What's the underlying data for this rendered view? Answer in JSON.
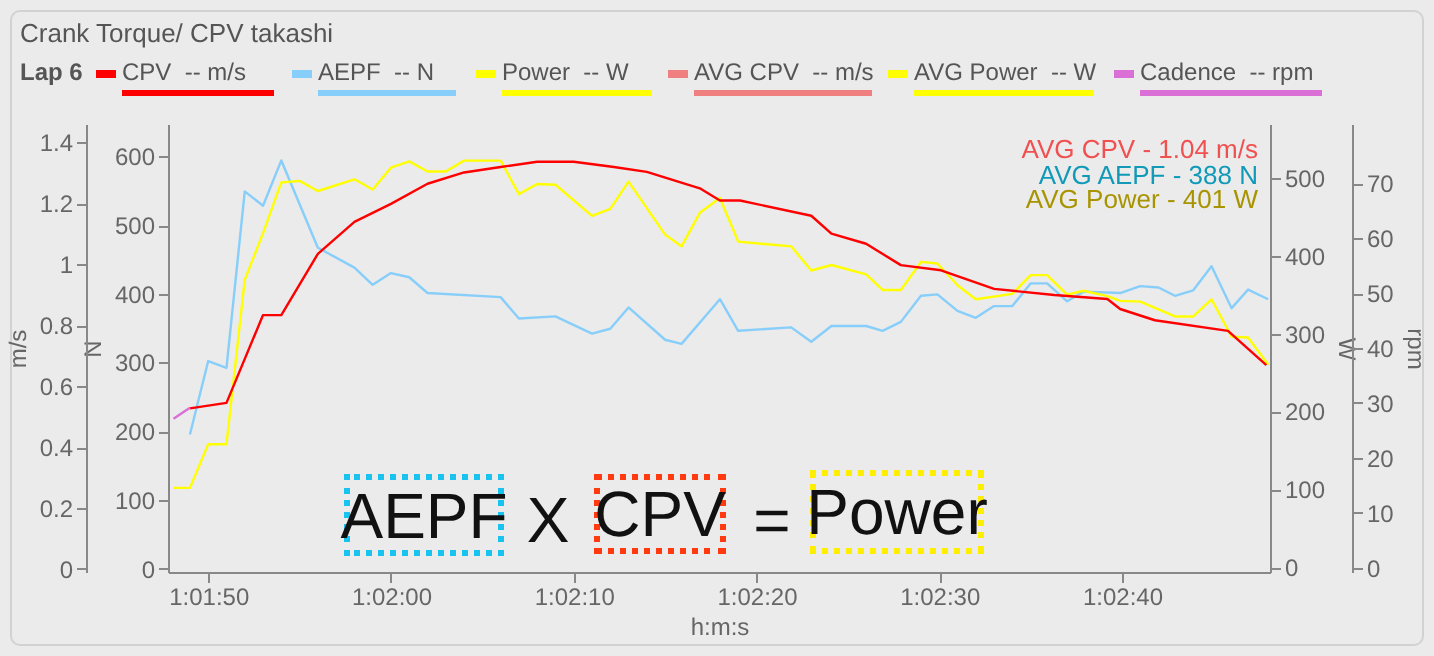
{
  "chart_data": [
    {
      "type": "line",
      "title": "Crank Torque/ CPV takashi",
      "xlabel": "h:m:s",
      "ylabel": "N",
      "y2label": "W",
      "y3label": "m/s",
      "xlim": [
        3707.8,
        3768.1
      ],
      "xticks": [
        {
          "value": 3710,
          "label": "1:01:50"
        },
        {
          "value": 3720,
          "label": "1:02:00"
        },
        {
          "value": 3730,
          "label": "1:02:10"
        },
        {
          "value": 3740,
          "label": "1:02:20"
        },
        {
          "value": 3750,
          "label": "1:02:30"
        },
        {
          "value": 3760,
          "label": "1:02:40"
        }
      ],
      "ylim": [
        -5,
        647
      ],
      "yticks": [
        0,
        100,
        200,
        300,
        400,
        500,
        600
      ],
      "y2lim": [
        -6,
        569
      ],
      "y2ticks": [
        0,
        100,
        200,
        300,
        400,
        500
      ],
      "y3lim": [
        -0.01,
        1.46
      ],
      "y3ticks": [
        0,
        0.2,
        0.4,
        0.6,
        0.8,
        1,
        1.2,
        1.4
      ],
      "legend": "top",
      "annotations": [
        "Lap 6",
        "AVG CPV - 1.04 m/s",
        "AVG AEPF - 388 N",
        "AVG Power - 401 W",
        "AEPF",
        "X",
        "CPV",
        "=",
        "Power"
      ],
      "series": [
        {
          "name": "CPV  -- m/s",
          "color": "#ff0000",
          "axis": "y3",
          "x": [
            3709.0,
            3711.0,
            3713.0,
            3714.0,
            3716.0,
            3718.0,
            3720.0,
            3722.0,
            3724.0,
            3726.0,
            3728.0,
            3730.0,
            3732.2,
            3734.0,
            3736.9,
            3738.0,
            3739.1,
            3743.0,
            3744.1,
            3746.0,
            3747.9,
            3750.1,
            3753.0,
            3756.3,
            3759.2,
            3759.9,
            3761.8,
            3765.8,
            3767.9
          ],
          "values": [
            0.527,
            0.545,
            0.833,
            0.833,
            1.034,
            1.139,
            1.198,
            1.264,
            1.301,
            1.319,
            1.336,
            1.336,
            1.319,
            1.303,
            1.249,
            1.209,
            1.209,
            1.159,
            1.1,
            1.067,
            0.997,
            0.98,
            0.919,
            0.899,
            0.886,
            0.853,
            0.816,
            0.781,
            0.669
          ]
        },
        {
          "name": "AEPF  -- N",
          "color": "#87cefa",
          "x": [
            3709.0,
            3710.0,
            3711.0,
            3712.0,
            3713.0,
            3714.0,
            3716.0,
            3718.0,
            3719.0,
            3720.0,
            3721.0,
            3722.0,
            3726.0,
            3727.0,
            3729.0,
            3731.0,
            3732.0,
            3733.0,
            3735.0,
            3735.9,
            3738.0,
            3739.0,
            3741.9,
            3743.0,
            3744.1,
            3746.0,
            3746.9,
            3747.9,
            3749.0,
            3749.9,
            3751.0,
            3752.0,
            3753.0,
            3754.0,
            3755.0,
            3755.9,
            3757.0,
            3757.9,
            3759.9,
            3761.0,
            3762.0,
            3762.9,
            3763.9,
            3764.9,
            3766.0,
            3766.9,
            3768.0
          ],
          "values": [
            195,
            302,
            292,
            549,
            528,
            594,
            467,
            438,
            413,
            430,
            424,
            401,
            395,
            364,
            367,
            342,
            349,
            380,
            333,
            327,
            392,
            346,
            351,
            330,
            353,
            353,
            346,
            359,
            397,
            399,
            375,
            365,
            382,
            382,
            415,
            415,
            389,
            403,
            401,
            411,
            409,
            397,
            405,
            440,
            379,
            406,
            392
          ]
        },
        {
          "name": "Power  -- W",
          "color": "#ffff00",
          "axis": "y2",
          "x": [
            3708.1,
            3709.0,
            3710.0,
            3711.0,
            3712.0,
            3713.0,
            3714.0,
            3715.0,
            3716.0,
            3718.0,
            3719.0,
            3720.0,
            3721.0,
            3722.0,
            3723.0,
            3724.0,
            3726.0,
            3727.0,
            3728.0,
            3729.0,
            3731.0,
            3732.0,
            3733.0,
            3735.0,
            3735.9,
            3736.9,
            3738.0,
            3739.0,
            3741.9,
            3743.0,
            3744.1,
            3746.0,
            3746.9,
            3747.9,
            3749.0,
            3749.9,
            3751.0,
            3752.0,
            3754.0,
            3755.0,
            3755.9,
            3757.0,
            3757.9,
            3759.2,
            3759.9,
            3761.0,
            3762.9,
            3763.9,
            3764.9,
            3766.0,
            3766.9,
            3768.0
          ],
          "values": [
            102,
            102,
            158,
            158,
            369,
            429,
            494,
            496,
            483,
            498,
            485,
            513,
            521,
            508,
            508,
            522,
            522,
            479,
            492,
            491,
            451,
            460,
            495,
            427,
            412,
            455,
            474,
            418,
            412,
            381,
            388,
            376,
            356,
            356,
            392,
            390,
            362,
            344,
            351,
            375,
            375,
            350,
            355,
            348,
            342,
            341,
            322,
            322,
            344,
            296,
            295,
            260
          ]
        },
        {
          "name": "AVG CPV  -- m/s",
          "color": "#f08080",
          "axis": "y3"
        },
        {
          "name": "AVG Power  -- W",
          "color": "#ffff00",
          "axis": "y2"
        }
      ]
    },
    {
      "type": "line",
      "y2label": "rpm",
      "xlim": [
        3707.8,
        3768.1
      ],
      "y2lim": [
        -0.8,
        80.8
      ],
      "y2ticks": [
        0,
        10,
        20,
        30,
        40,
        50,
        60,
        70
      ],
      "tick_labels": "y",
      "legend": "top",
      "series": [
        {
          "name": "Cadence  -- rpm",
          "color": "#da70d6",
          "axis": "y2",
          "x": [
            3708.1,
            3709.0
          ],
          "values": [
            27.1,
            29.1
          ]
        }
      ]
    }
  ]
}
